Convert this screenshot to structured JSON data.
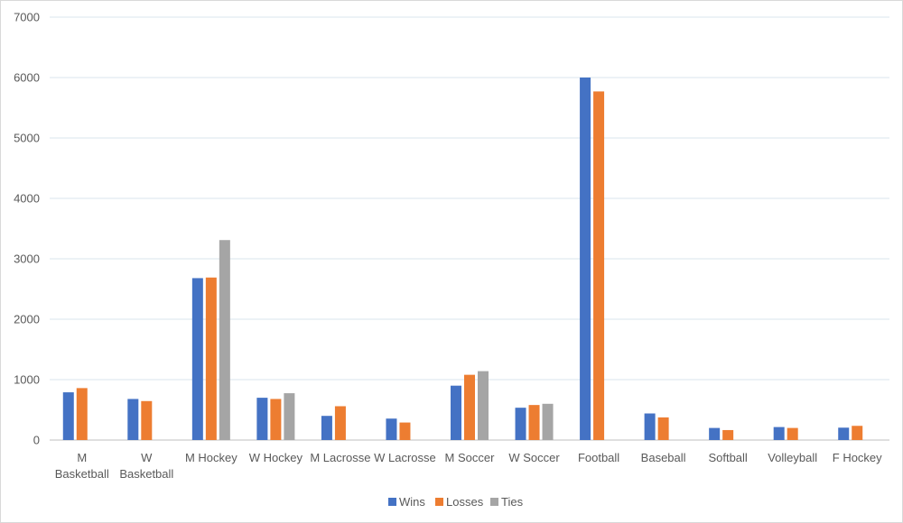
{
  "chart_data": {
    "type": "bar",
    "title": "",
    "xlabel": "",
    "ylabel": "",
    "ylim": [
      0,
      7000
    ],
    "yticks": [
      0,
      1000,
      2000,
      3000,
      4000,
      5000,
      6000,
      7000
    ],
    "grid": true,
    "legend_position": "bottom",
    "categories": [
      [
        "M",
        "Basketball"
      ],
      [
        "W",
        "Basketball"
      ],
      [
        "M Hockey"
      ],
      [
        "W Hockey"
      ],
      [
        "M Lacrosse"
      ],
      [
        "W Lacrosse"
      ],
      [
        "M Soccer"
      ],
      [
        "W Soccer"
      ],
      [
        "Football"
      ],
      [
        "Baseball"
      ],
      [
        "Softball"
      ],
      [
        "Volleyball"
      ],
      [
        "F Hockey"
      ]
    ],
    "series": [
      {
        "name": "Wins",
        "color": "#4472c4",
        "values": [
          790,
          680,
          2680,
          700,
          400,
          355,
          900,
          535,
          6000,
          440,
          200,
          215,
          205
        ]
      },
      {
        "name": "Losses",
        "color": "#ed7d31",
        "values": [
          860,
          645,
          2690,
          680,
          560,
          290,
          1080,
          580,
          5770,
          375,
          165,
          200,
          235
        ]
      },
      {
        "name": "Ties",
        "color": "#a5a5a5",
        "values": [
          null,
          null,
          3310,
          775,
          null,
          null,
          1140,
          600,
          null,
          null,
          null,
          null,
          null
        ]
      }
    ]
  }
}
